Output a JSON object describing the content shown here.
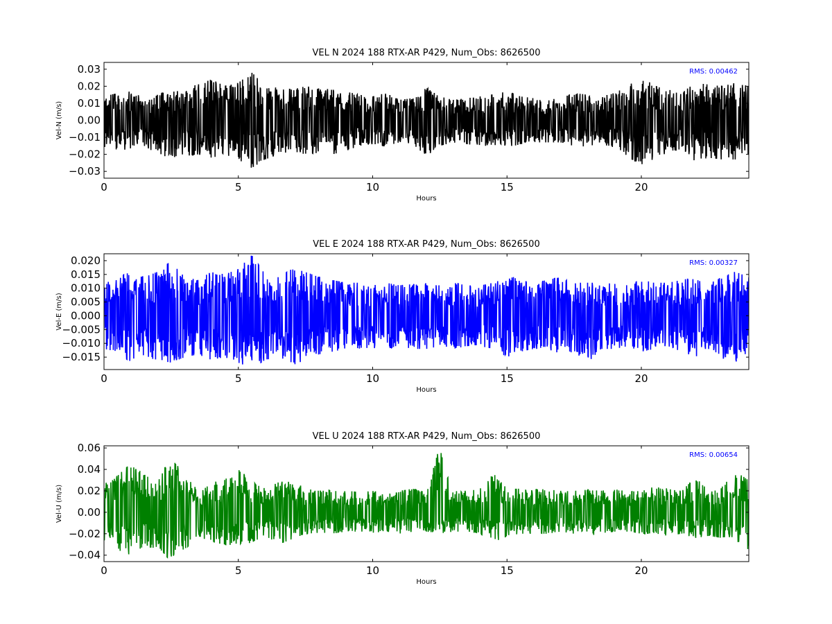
{
  "chart_data": [
    {
      "type": "line",
      "title": "VEL N 2024 188 RTX-AR  P429, Num_Obs: 8626500",
      "xlabel": "Hours",
      "ylabel": "Vel-N (m/s)",
      "xlim": [
        0,
        24
      ],
      "ylim": [
        -0.034,
        0.034
      ],
      "xticks": [
        "0",
        "5",
        "10",
        "15",
        "20"
      ],
      "yticks": [
        "0.03",
        "0.02",
        "0.01",
        "0.00",
        "−0.01",
        "−0.02",
        "−0.03"
      ],
      "annotation": "RMS:  0.00462",
      "grid": false,
      "series": [
        {
          "color": "#000000",
          "x": [
            0,
            0.5,
            1,
            1.5,
            2,
            2.5,
            3,
            3.5,
            4,
            4.5,
            5,
            5.5,
            6,
            6.5,
            7,
            7.5,
            8,
            8.5,
            9,
            9.5,
            10,
            10.5,
            11,
            11.5,
            12,
            12.5,
            13,
            13.5,
            14,
            14.5,
            15,
            15.5,
            16,
            16.5,
            17,
            17.5,
            18,
            18.5,
            19,
            19.5,
            20,
            20.5,
            21,
            21.5,
            22,
            22.5,
            23,
            23.5,
            24
          ],
          "y_max": [
            0.014,
            0.016,
            0.017,
            0.013,
            0.015,
            0.018,
            0.019,
            0.021,
            0.024,
            0.02,
            0.022,
            0.028,
            0.021,
            0.019,
            0.018,
            0.02,
            0.019,
            0.018,
            0.017,
            0.015,
            0.014,
            0.016,
            0.012,
            0.013,
            0.019,
            0.014,
            0.012,
            0.013,
            0.014,
            0.015,
            0.017,
            0.014,
            0.013,
            0.012,
            0.013,
            0.016,
            0.015,
            0.014,
            0.016,
            0.02,
            0.026,
            0.02,
            0.018,
            0.016,
            0.022,
            0.021,
            0.02,
            0.022,
            0.02
          ],
          "y_min": [
            -0.017,
            -0.018,
            -0.017,
            -0.015,
            -0.02,
            -0.022,
            -0.021,
            -0.02,
            -0.022,
            -0.02,
            -0.023,
            -0.028,
            -0.023,
            -0.02,
            -0.018,
            -0.02,
            -0.019,
            -0.02,
            -0.018,
            -0.015,
            -0.014,
            -0.016,
            -0.013,
            -0.014,
            -0.021,
            -0.015,
            -0.013,
            -0.014,
            -0.015,
            -0.015,
            -0.016,
            -0.014,
            -0.013,
            -0.013,
            -0.013,
            -0.016,
            -0.015,
            -0.014,
            -0.016,
            -0.021,
            -0.028,
            -0.022,
            -0.019,
            -0.017,
            -0.024,
            -0.022,
            -0.023,
            -0.023,
            -0.02
          ]
        }
      ]
    },
    {
      "type": "line",
      "title": "VEL E 2024 188 RTX-AR  P429, Num_Obs: 8626500",
      "xlabel": "Hours",
      "ylabel": "Vel-E (m/s)",
      "xlim": [
        0,
        24
      ],
      "ylim": [
        -0.0195,
        0.0225
      ],
      "xticks": [
        "0",
        "5",
        "10",
        "15",
        "20"
      ],
      "yticks": [
        "0.020",
        "0.015",
        "0.010",
        "0.005",
        "0.000",
        "−0.005",
        "−0.010",
        "−0.015"
      ],
      "annotation": "RMS:  0.00327",
      "grid": false,
      "series": [
        {
          "color": "#0000ff",
          "x": [
            0,
            0.5,
            1,
            1.5,
            2,
            2.5,
            3,
            3.5,
            4,
            4.5,
            5,
            5.5,
            6,
            6.5,
            7,
            7.5,
            8,
            8.5,
            9,
            9.5,
            10,
            10.5,
            11,
            11.5,
            12,
            12.5,
            13,
            13.5,
            14,
            14.5,
            15,
            15.5,
            16,
            16.5,
            17,
            17.5,
            18,
            18.5,
            19,
            19.5,
            20,
            20.5,
            21,
            21.5,
            22,
            22.5,
            23,
            23.5,
            24
          ],
          "y_max": [
            0.012,
            0.013,
            0.017,
            0.014,
            0.016,
            0.02,
            0.014,
            0.013,
            0.016,
            0.015,
            0.017,
            0.022,
            0.015,
            0.014,
            0.017,
            0.016,
            0.014,
            0.013,
            0.012,
            0.012,
            0.011,
            0.012,
            0.011,
            0.012,
            0.012,
            0.011,
            0.012,
            0.011,
            0.011,
            0.012,
            0.015,
            0.013,
            0.012,
            0.013,
            0.014,
            0.012,
            0.012,
            0.012,
            0.012,
            0.011,
            0.013,
            0.012,
            0.012,
            0.013,
            0.014,
            0.012,
            0.015,
            0.016,
            0.014
          ],
          "y_min": [
            -0.012,
            -0.013,
            -0.017,
            -0.015,
            -0.016,
            -0.017,
            -0.015,
            -0.014,
            -0.016,
            -0.015,
            -0.017,
            -0.019,
            -0.016,
            -0.015,
            -0.018,
            -0.016,
            -0.014,
            -0.013,
            -0.012,
            -0.012,
            -0.012,
            -0.012,
            -0.011,
            -0.012,
            -0.012,
            -0.011,
            -0.012,
            -0.011,
            -0.011,
            -0.012,
            -0.015,
            -0.013,
            -0.012,
            -0.012,
            -0.014,
            -0.013,
            -0.017,
            -0.012,
            -0.012,
            -0.011,
            -0.013,
            -0.012,
            -0.012,
            -0.013,
            -0.015,
            -0.012,
            -0.016,
            -0.017,
            -0.013
          ]
        }
      ]
    },
    {
      "type": "line",
      "title": "VEL U 2024 188 RTX-AR  P429, Num_Obs: 8626500",
      "xlabel": "Hours",
      "ylabel": "Vel-U (m/s)",
      "xlim": [
        0,
        24
      ],
      "ylim": [
        -0.046,
        0.062
      ],
      "xticks": [
        "0",
        "5",
        "10",
        "15",
        "20"
      ],
      "yticks": [
        "0.06",
        "0.04",
        "0.02",
        "0.00",
        "−0.02",
        "−0.04"
      ],
      "annotation": "RMS:  0.00654",
      "grid": false,
      "series": [
        {
          "color": "#008000",
          "x": [
            0,
            0.5,
            1,
            1.5,
            2,
            2.5,
            3,
            3.5,
            4,
            4.5,
            5,
            5.5,
            6,
            6.5,
            7,
            7.5,
            8,
            8.5,
            9,
            9.5,
            10,
            10.5,
            11,
            11.5,
            12,
            12.5,
            13,
            13.5,
            14,
            14.5,
            15,
            15.5,
            16,
            16.5,
            17,
            17.5,
            18,
            18.5,
            19,
            19.5,
            20,
            20.5,
            21,
            21.5,
            22,
            22.5,
            23,
            23.5,
            24
          ],
          "y_max": [
            0.03,
            0.034,
            0.046,
            0.035,
            0.032,
            0.05,
            0.036,
            0.02,
            0.026,
            0.034,
            0.04,
            0.03,
            0.022,
            0.028,
            0.03,
            0.022,
            0.02,
            0.022,
            0.02,
            0.019,
            0.02,
            0.018,
            0.02,
            0.022,
            0.018,
            0.062,
            0.02,
            0.02,
            0.022,
            0.036,
            0.022,
            0.022,
            0.021,
            0.022,
            0.02,
            0.02,
            0.021,
            0.02,
            0.022,
            0.019,
            0.02,
            0.024,
            0.022,
            0.02,
            0.032,
            0.022,
            0.024,
            0.038,
            0.03
          ],
          "y_min": [
            -0.03,
            -0.035,
            -0.04,
            -0.035,
            -0.032,
            -0.046,
            -0.035,
            -0.022,
            -0.028,
            -0.03,
            -0.032,
            -0.028,
            -0.022,
            -0.03,
            -0.025,
            -0.02,
            -0.02,
            -0.02,
            -0.018,
            -0.018,
            -0.019,
            -0.018,
            -0.02,
            -0.018,
            -0.018,
            -0.02,
            -0.018,
            -0.018,
            -0.02,
            -0.028,
            -0.022,
            -0.02,
            -0.02,
            -0.02,
            -0.018,
            -0.02,
            -0.022,
            -0.02,
            -0.018,
            -0.018,
            -0.02,
            -0.02,
            -0.022,
            -0.02,
            -0.024,
            -0.022,
            -0.024,
            -0.026,
            -0.035
          ]
        }
      ]
    }
  ]
}
